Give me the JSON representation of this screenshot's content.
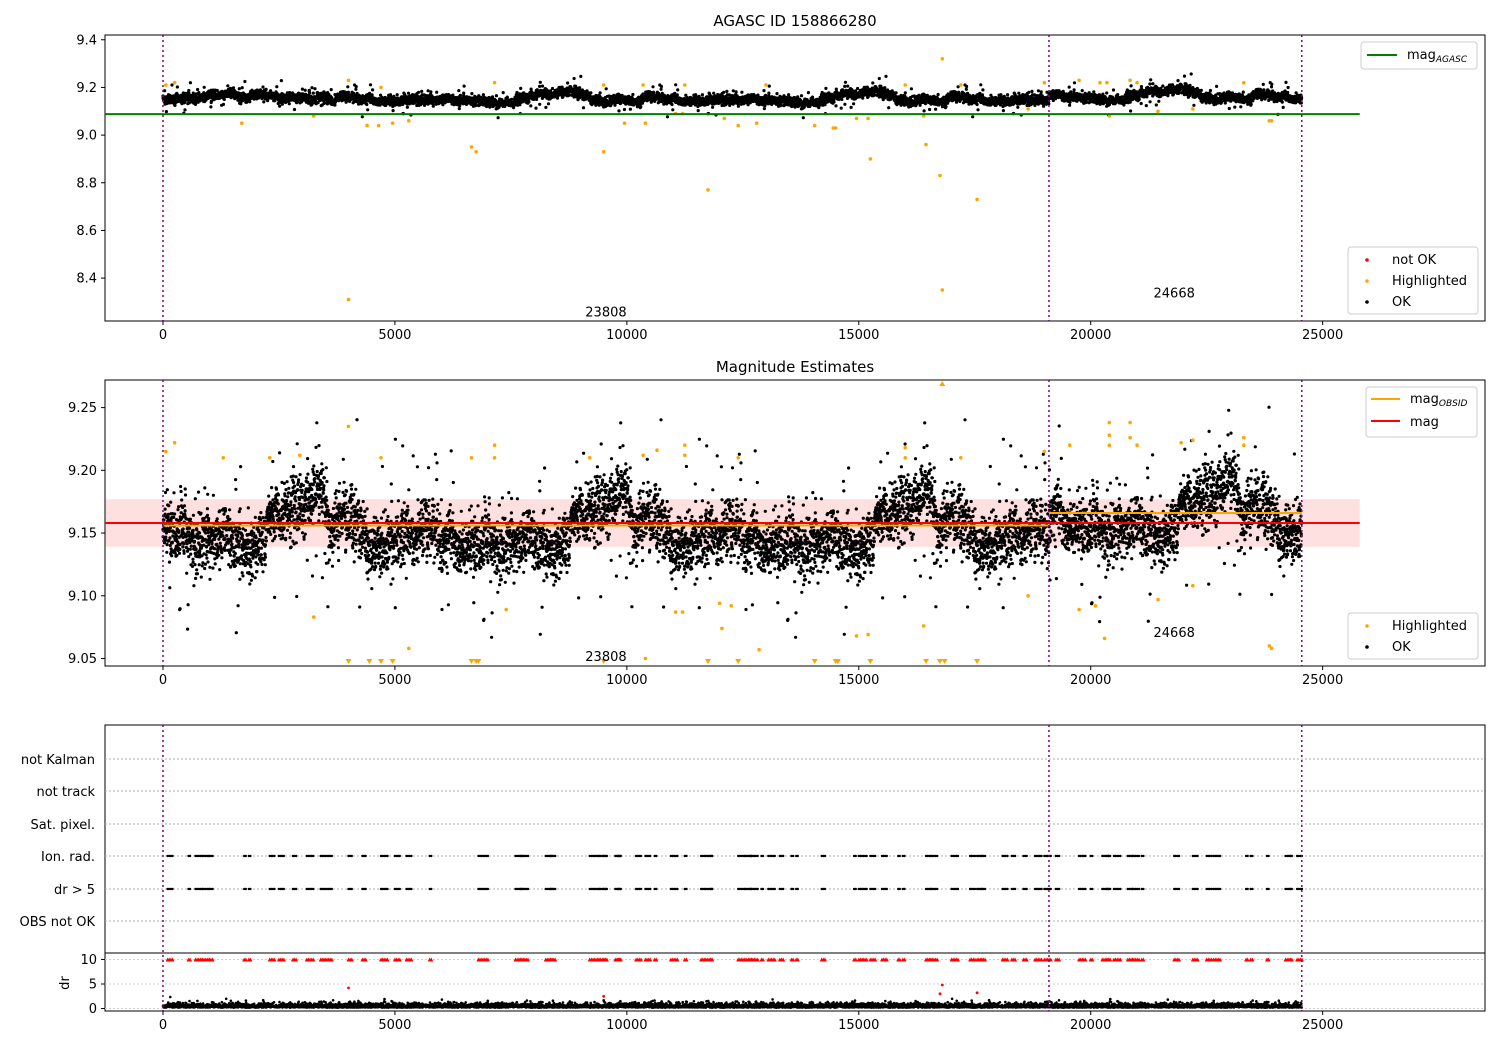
{
  "chart_data": [
    {
      "type": "scatter",
      "title": "AGASC ID 158866280",
      "xlim": [
        -1250,
        28500
      ],
      "ylim": [
        8.22,
        9.42
      ],
      "xticks": [
        0,
        5000,
        10000,
        15000,
        20000,
        25000
      ],
      "yticks": [
        8.4,
        8.6,
        8.8,
        9.0,
        9.2,
        9.4
      ],
      "obsid_boundaries": [
        0,
        19100,
        24550
      ],
      "obsid_labels": [
        {
          "text": "23808",
          "x": 9550,
          "y": 8.26
        },
        {
          "text": "24668",
          "x": 21800,
          "y": 8.34
        }
      ],
      "reference_lines": [
        {
          "label_main": "mag",
          "label_sub": "AGASC",
          "color": "#008000",
          "y": 9.088,
          "x_range": [
            -1250,
            25800
          ]
        }
      ],
      "series": [
        {
          "name": "not OK",
          "color": "#ff0000",
          "points": []
        },
        {
          "name": "Highlighted",
          "color": "#ffa500",
          "points": [
            [
              60,
              9.21
            ],
            [
              250,
              9.22
            ],
            [
              1700,
              9.05
            ],
            [
              3250,
              9.08
            ],
            [
              4000,
              9.23
            ],
            [
              4000,
              8.31
            ],
            [
              4400,
              9.04
            ],
            [
              4650,
              9.04
            ],
            [
              4700,
              9.2
            ],
            [
              4950,
              9.05
            ],
            [
              5300,
              9.06
            ],
            [
              6650,
              8.95
            ],
            [
              6750,
              8.93
            ],
            [
              7150,
              9.22
            ],
            [
              9500,
              8.93
            ],
            [
              9500,
              9.21
            ],
            [
              9950,
              9.05
            ],
            [
              10350,
              9.21
            ],
            [
              10400,
              9.05
            ],
            [
              11050,
              9.09
            ],
            [
              11200,
              9.09
            ],
            [
              11250,
              9.21
            ],
            [
              11750,
              8.77
            ],
            [
              12100,
              9.07
            ],
            [
              12400,
              9.04
            ],
            [
              12800,
              9.05
            ],
            [
              13000,
              9.21
            ],
            [
              14050,
              9.04
            ],
            [
              14450,
              9.03
            ],
            [
              14500,
              9.03
            ],
            [
              14950,
              9.07
            ],
            [
              15200,
              9.07
            ],
            [
              15250,
              8.9
            ],
            [
              16000,
              9.21
            ],
            [
              16400,
              9.08
            ],
            [
              16450,
              8.96
            ],
            [
              16750,
              8.83
            ],
            [
              16800,
              9.32
            ],
            [
              16800,
              8.35
            ],
            [
              17200,
              9.21
            ],
            [
              17550,
              8.73
            ],
            [
              18650,
              9.11
            ],
            [
              19000,
              9.22
            ],
            [
              19750,
              9.23
            ],
            [
              20200,
              9.22
            ],
            [
              20350,
              9.22
            ],
            [
              20400,
              9.08
            ],
            [
              20850,
              9.23
            ],
            [
              21000,
              9.22
            ],
            [
              21450,
              9.1
            ],
            [
              22200,
              9.11
            ],
            [
              23300,
              9.22
            ],
            [
              23850,
              9.06
            ],
            [
              23900,
              9.06
            ]
          ]
        },
        {
          "name": "OK",
          "color": "#000000",
          "band": [
            {
              "x_range": [
                0,
                19100
              ],
              "center": 9.155,
              "spread": 0.026
            },
            {
              "x_range": [
                19100,
                24550
              ],
              "center": 9.165,
              "spread": 0.026
            }
          ]
        }
      ],
      "legends": [
        {
          "position": "upper-right",
          "entries": [
            "mag_AGASC"
          ]
        },
        {
          "position": "lower-right",
          "entries": [
            "not OK",
            "Highlighted",
            "OK"
          ]
        }
      ]
    },
    {
      "type": "scatter",
      "title": "Magnitude Estimates",
      "xlim": [
        -1250,
        28500
      ],
      "ylim": [
        9.044,
        9.272
      ],
      "xticks": [
        0,
        5000,
        10000,
        15000,
        20000,
        25000
      ],
      "yticks": [
        9.05,
        9.1,
        9.15,
        9.2,
        9.25
      ],
      "obsid_boundaries": [
        0,
        19100,
        24550
      ],
      "obsid_labels": [
        {
          "text": "23808",
          "x": 9550,
          "y": 9.052
        },
        {
          "text": "24668",
          "x": 21800,
          "y": 9.071
        }
      ],
      "reference_lines": [
        {
          "label_main": "mag",
          "label_sub": "OBSID",
          "color": "#ffa500",
          "segments": [
            {
              "x_range": [
                0,
                19100
              ],
              "y": 9.156
            },
            {
              "x_range": [
                19100,
                24550
              ],
              "y": 9.166
            }
          ]
        },
        {
          "label_main": "mag",
          "label_sub": "",
          "color": "#ff0000",
          "y": 9.158,
          "x_range": [
            -1250,
            25800
          ],
          "band": [
            9.139,
            9.177
          ]
        }
      ],
      "series": [
        {
          "name": "Highlighted",
          "color": "#ffa500",
          "points": [
            [
              60,
              9.215
            ],
            [
              250,
              9.222
            ],
            [
              1300,
              9.21
            ],
            [
              2300,
              9.21
            ],
            [
              2950,
              9.212
            ],
            [
              3250,
              9.083
            ],
            [
              4000,
              9.235
            ],
            [
              4700,
              9.21
            ],
            [
              5300,
              9.058
            ],
            [
              6650,
              9.21
            ],
            [
              7150,
              9.22
            ],
            [
              7150,
              9.21
            ],
            [
              7400,
              9.089
            ],
            [
              9200,
              9.21
            ],
            [
              10350,
              9.212
            ],
            [
              10400,
              9.05
            ],
            [
              10650,
              9.216
            ],
            [
              11050,
              9.087
            ],
            [
              11200,
              9.087
            ],
            [
              11250,
              9.22
            ],
            [
              11250,
              9.212
            ],
            [
              12000,
              9.094
            ],
            [
              12050,
              9.074
            ],
            [
              12250,
              9.092
            ],
            [
              12400,
              9.21
            ],
            [
              12850,
              9.057
            ],
            [
              14950,
              9.068
            ],
            [
              15200,
              9.069
            ],
            [
              16000,
              9.21
            ],
            [
              16400,
              9.076
            ],
            [
              16000,
              9.218
            ],
            [
              17200,
              9.21
            ],
            [
              18650,
              9.1
            ],
            [
              19000,
              9.215
            ],
            [
              19550,
              9.22
            ],
            [
              19750,
              9.089
            ],
            [
              20100,
              9.092
            ],
            [
              20300,
              9.066
            ],
            [
              20400,
              9.238
            ],
            [
              20400,
              9.228
            ],
            [
              20400,
              9.22
            ],
            [
              20850,
              9.238
            ],
            [
              20850,
              9.226
            ],
            [
              21000,
              9.22
            ],
            [
              21450,
              9.097
            ],
            [
              21950,
              9.222
            ],
            [
              22200,
              9.108
            ],
            [
              22200,
              9.224
            ],
            [
              23300,
              9.226
            ],
            [
              23300,
              9.22
            ],
            [
              23850,
              9.06
            ],
            [
              23900,
              9.058
            ]
          ],
          "markers_below_axis_x": [
            4000,
            4450,
            4700,
            4950,
            6650,
            6750,
            6800,
            9500,
            11750,
            12400,
            14050,
            14500,
            14550,
            15250,
            16450,
            16750,
            16850,
            17550
          ],
          "markers_above_axis_x": [
            16800
          ]
        },
        {
          "name": "OK",
          "color": "#000000",
          "band": [
            {
              "x_range": [
                0,
                19100
              ],
              "center": 9.155,
              "spread": 0.03
            },
            {
              "x_range": [
                19100,
                24550
              ],
              "center": 9.165,
              "spread": 0.03
            }
          ]
        }
      ],
      "legends": [
        {
          "position": "upper-right",
          "entries": [
            "mag_OBSID",
            "mag"
          ]
        },
        {
          "position": "lower-right",
          "entries": [
            "Highlighted",
            "OK"
          ]
        }
      ]
    },
    {
      "type": "scatter",
      "title": "",
      "xlim": [
        -1250,
        28500
      ],
      "xticks": [
        0,
        5000,
        10000,
        15000,
        20000,
        25000
      ],
      "obsid_boundaries": [
        0,
        19100,
        24550
      ],
      "flag_rows": [
        "not Kalman",
        "not track",
        "Sat. pixel.",
        "Ion. rad.",
        "dr > 5",
        "OBS not OK"
      ],
      "flagged_clusters_x": [
        100,
        550,
        700,
        850,
        1000,
        1750,
        1850,
        2300,
        2500,
        2800,
        3100,
        3400,
        3500,
        4000,
        4300,
        4700,
        5000,
        5250,
        5750,
        6800,
        6900,
        7600,
        7700,
        7800,
        8250,
        8350,
        9200,
        9300,
        9400,
        9500,
        9750,
        9800,
        10200,
        10400,
        10600,
        10950,
        11250,
        11600,
        11700,
        11800,
        12400,
        12550,
        12650,
        12750,
        12900,
        13050,
        13300,
        13550,
        13650,
        14200,
        14900,
        15000,
        15100,
        15250,
        15500,
        15850,
        15950,
        16450,
        16550,
        17000,
        17400,
        17550,
        17650,
        18100,
        18300,
        18550,
        18800,
        19000,
        19250,
        19750,
        19850,
        20000,
        20250,
        20350,
        20500,
        20800,
        20900,
        21100,
        21800,
        22200,
        22500,
        22650,
        23350,
        23450,
        23800,
        24200,
        24300,
        24450
      ],
      "dr_ylim": [
        -0.5,
        10.5
      ],
      "dr_yticks": [
        0,
        5,
        10
      ],
      "ylabel": "dr",
      "dr_outliers": [
        [
          4000,
          4.2
        ],
        [
          9500,
          2.5
        ],
        [
          16750,
          3
        ],
        [
          16800,
          4.8
        ],
        [
          17550,
          3.2
        ]
      ]
    }
  ]
}
